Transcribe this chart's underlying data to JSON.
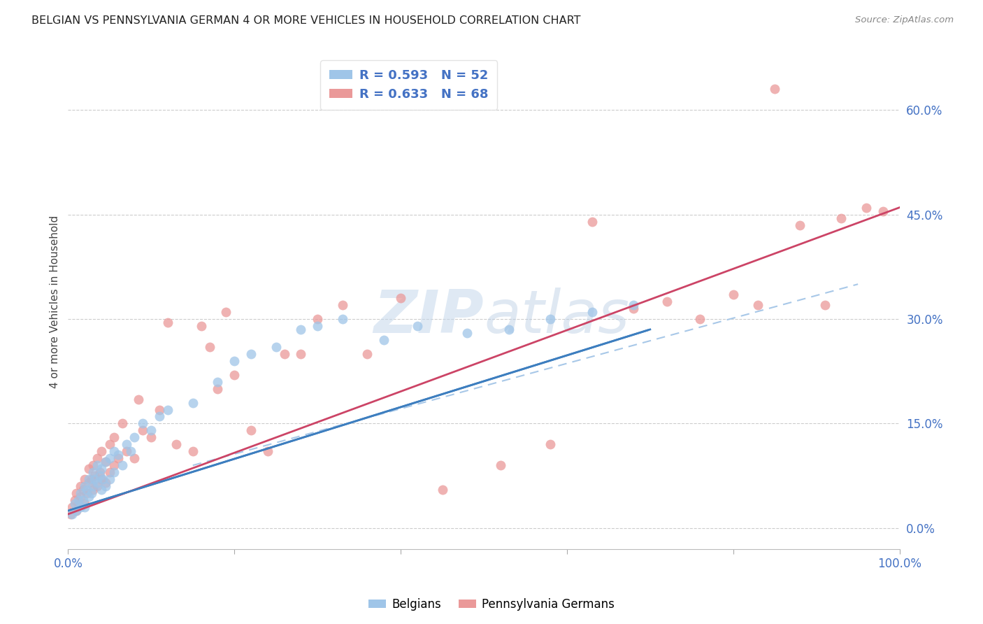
{
  "title": "BELGIAN VS PENNSYLVANIA GERMAN 4 OR MORE VEHICLES IN HOUSEHOLD CORRELATION CHART",
  "source": "Source: ZipAtlas.com",
  "ylabel": "4 or more Vehicles in Household",
  "ytick_values": [
    0.0,
    15.0,
    30.0,
    45.0,
    60.0
  ],
  "xlim": [
    0.0,
    100.0
  ],
  "ylim": [
    -3.0,
    68.0
  ],
  "belgian_color": "#9fc5e8",
  "penn_german_color": "#ea9999",
  "belgian_line_color": "#3d7ebf",
  "penn_german_line_color": "#cc4466",
  "dashed_line_color": "#a8c8e8",
  "legend_belgian_label": "R = 0.593   N = 52",
  "legend_penn_label": "R = 0.633   N = 68",
  "legend_belgians": "Belgians",
  "legend_penn": "Pennsylvania Germans",
  "background_color": "#ffffff",
  "grid_color": "#cccccc",
  "belgian_scatter_x": [
    0.5,
    0.8,
    1.0,
    1.2,
    1.5,
    1.5,
    1.8,
    2.0,
    2.0,
    2.2,
    2.5,
    2.5,
    2.8,
    3.0,
    3.0,
    3.2,
    3.5,
    3.5,
    3.8,
    4.0,
    4.0,
    4.2,
    4.5,
    4.5,
    5.0,
    5.0,
    5.5,
    5.5,
    6.0,
    6.5,
    7.0,
    7.5,
    8.0,
    9.0,
    10.0,
    11.0,
    12.0,
    15.0,
    18.0,
    20.0,
    22.0,
    25.0,
    28.0,
    30.0,
    33.0,
    38.0,
    42.0,
    48.0,
    53.0,
    58.0,
    63.0,
    68.0
  ],
  "belgian_scatter_y": [
    2.0,
    3.5,
    2.5,
    4.0,
    3.0,
    5.0,
    4.0,
    6.0,
    3.0,
    5.5,
    4.5,
    7.0,
    5.0,
    6.0,
    8.0,
    7.0,
    6.5,
    9.0,
    7.5,
    5.5,
    8.5,
    7.0,
    6.0,
    9.5,
    7.0,
    10.0,
    8.0,
    11.0,
    10.5,
    9.0,
    12.0,
    11.0,
    13.0,
    15.0,
    14.0,
    16.0,
    17.0,
    18.0,
    21.0,
    24.0,
    25.0,
    26.0,
    28.5,
    29.0,
    30.0,
    27.0,
    29.0,
    28.0,
    28.5,
    30.0,
    31.0,
    32.0
  ],
  "penn_scatter_x": [
    0.3,
    0.5,
    0.8,
    1.0,
    1.0,
    1.2,
    1.5,
    1.5,
    1.8,
    2.0,
    2.0,
    2.2,
    2.5,
    2.5,
    2.8,
    3.0,
    3.0,
    3.2,
    3.5,
    3.5,
    3.8,
    4.0,
    4.0,
    4.5,
    4.5,
    5.0,
    5.0,
    5.5,
    5.5,
    6.0,
    6.5,
    7.0,
    8.0,
    8.5,
    9.0,
    10.0,
    11.0,
    12.0,
    13.0,
    15.0,
    16.0,
    17.0,
    18.0,
    19.0,
    20.0,
    22.0,
    24.0,
    26.0,
    28.0,
    30.0,
    33.0,
    36.0,
    40.0,
    45.0,
    52.0,
    58.0,
    63.0,
    68.0,
    72.0,
    76.0,
    80.0,
    83.0,
    85.0,
    88.0,
    91.0,
    93.0,
    96.0,
    98.0
  ],
  "penn_scatter_y": [
    2.0,
    3.0,
    4.0,
    2.5,
    5.0,
    3.5,
    4.5,
    6.0,
    5.5,
    3.5,
    7.0,
    5.0,
    6.5,
    8.5,
    7.0,
    5.5,
    9.0,
    7.5,
    6.0,
    10.0,
    8.0,
    7.0,
    11.0,
    6.5,
    9.5,
    8.0,
    12.0,
    9.0,
    13.0,
    10.0,
    15.0,
    11.0,
    10.0,
    18.5,
    14.0,
    13.0,
    17.0,
    29.5,
    12.0,
    11.0,
    29.0,
    26.0,
    20.0,
    31.0,
    22.0,
    14.0,
    11.0,
    25.0,
    25.0,
    30.0,
    32.0,
    25.0,
    33.0,
    5.5,
    9.0,
    12.0,
    44.0,
    31.5,
    32.5,
    30.0,
    33.5,
    32.0,
    63.0,
    43.5,
    32.0,
    44.5,
    46.0,
    45.5
  ],
  "belgian_line_x0": 0.0,
  "belgian_line_y0": 2.5,
  "belgian_line_x1": 70.0,
  "belgian_line_y1": 28.5,
  "penn_line_x0": 0.0,
  "penn_line_y0": 2.0,
  "penn_line_x1": 100.0,
  "penn_line_y1": 46.0,
  "dashed_line_x0": 15.0,
  "dashed_line_y0": 9.0,
  "dashed_line_x1": 95.0,
  "dashed_line_y1": 35.0
}
